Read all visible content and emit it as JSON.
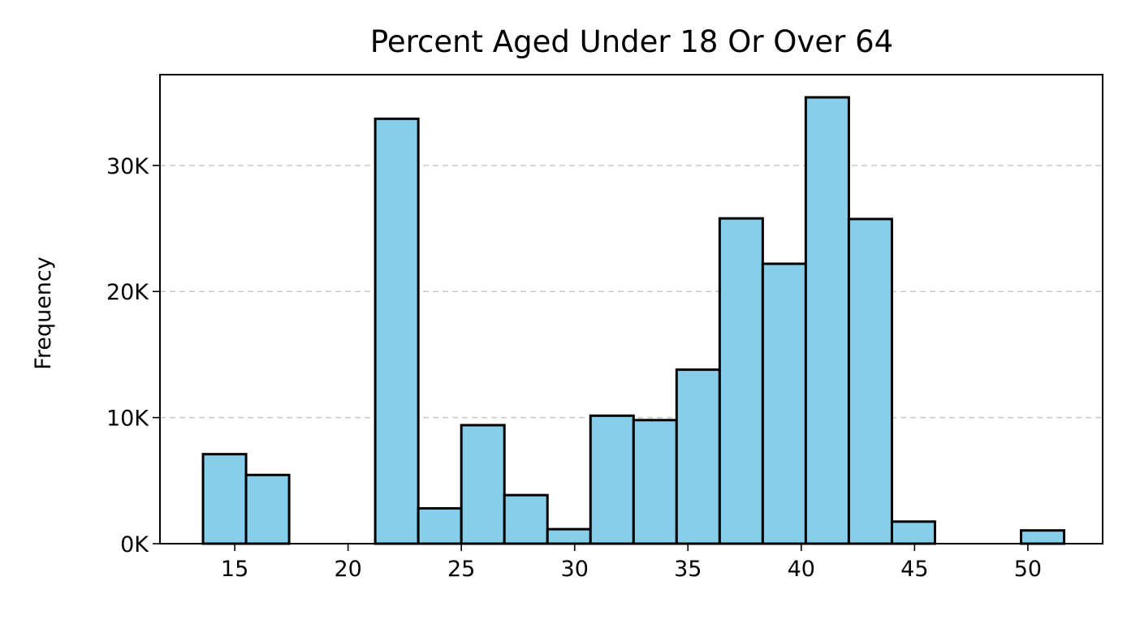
{
  "chart_data": {
    "type": "bar",
    "title": "Percent Aged Under 18 Or Over 64",
    "xlabel": "",
    "ylabel": "Frequency",
    "bar_color": "#87ceeb",
    "edge_color": "#000000",
    "grid": "y-dashed",
    "xlim": [
      11.7,
      53.3
    ],
    "ylim": [
      0,
      37200
    ],
    "x_ticks": [
      15,
      20,
      25,
      30,
      35,
      40,
      45,
      50
    ],
    "x_tick_labels": [
      "15",
      "20",
      "25",
      "30",
      "35",
      "40",
      "45",
      "50"
    ],
    "y_ticks": [
      0,
      10000,
      20000,
      30000
    ],
    "y_tick_labels": [
      "0K",
      "10K",
      "20K",
      "30K"
    ],
    "bins": [
      [
        13.6,
        15.5
      ],
      [
        15.5,
        17.4
      ],
      [
        17.4,
        19.3
      ],
      [
        19.3,
        21.2
      ],
      [
        21.2,
        23.1
      ],
      [
        23.1,
        25.0
      ],
      [
        25.0,
        26.9
      ],
      [
        26.9,
        28.8
      ],
      [
        28.8,
        30.7
      ],
      [
        30.7,
        32.6
      ],
      [
        32.6,
        34.5
      ],
      [
        34.5,
        36.4
      ],
      [
        36.4,
        38.3
      ],
      [
        38.3,
        40.2
      ],
      [
        40.2,
        42.1
      ],
      [
        42.1,
        44.0
      ],
      [
        44.0,
        45.9
      ],
      [
        45.9,
        47.8
      ],
      [
        47.8,
        49.7
      ],
      [
        49.7,
        51.6
      ]
    ],
    "values": [
      7100,
      5450,
      0,
      0,
      33700,
      2800,
      9400,
      3850,
      1150,
      10150,
      9800,
      13800,
      25800,
      22200,
      35400,
      25750,
      1750,
      0,
      0,
      1050
    ]
  }
}
